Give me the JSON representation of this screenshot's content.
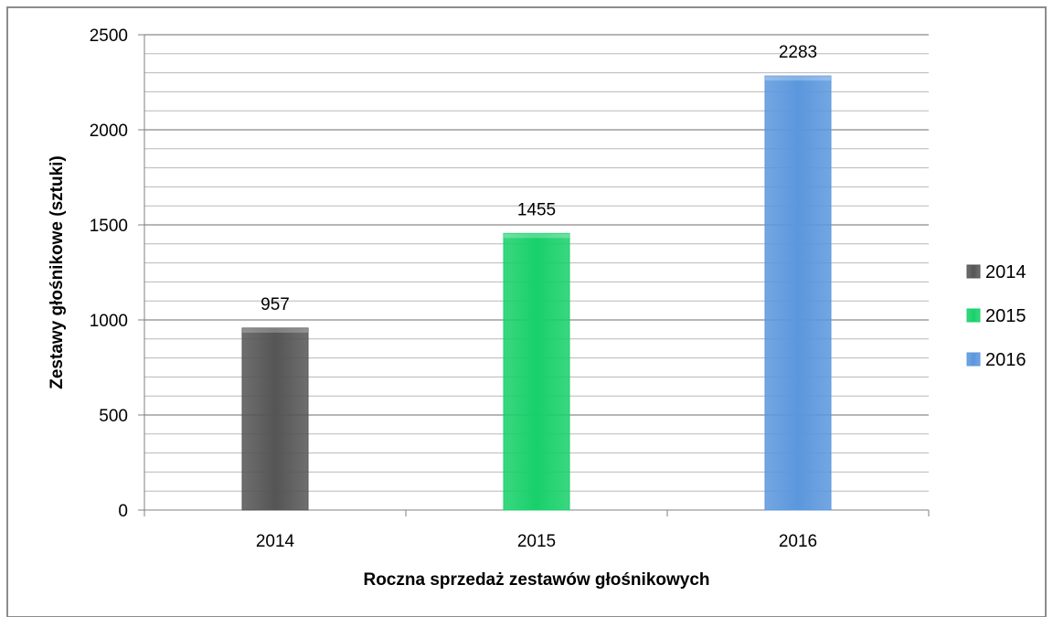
{
  "chart_data": {
    "type": "bar",
    "categories": [
      "2014",
      "2015",
      "2016"
    ],
    "values": [
      957,
      1455,
      2283
    ],
    "data_labels": [
      "957",
      "1455",
      "2283"
    ],
    "xlabel": "Roczna sprzedaż zestawów głośnikowych",
    "ylabel": "Zestawy głośnikowe (sztuki)",
    "ylim": [
      0,
      2500
    ],
    "yticks": [
      "0",
      "500",
      "1000",
      "1500",
      "2000",
      "2500"
    ],
    "grid": true,
    "minor_grid_step": 100,
    "major_grid_step": 500,
    "legend_position": "right",
    "legend": [
      "2014",
      "2015",
      "2016"
    ],
    "colors": [
      "#555555",
      "#18d06a",
      "#5b97dd"
    ]
  }
}
